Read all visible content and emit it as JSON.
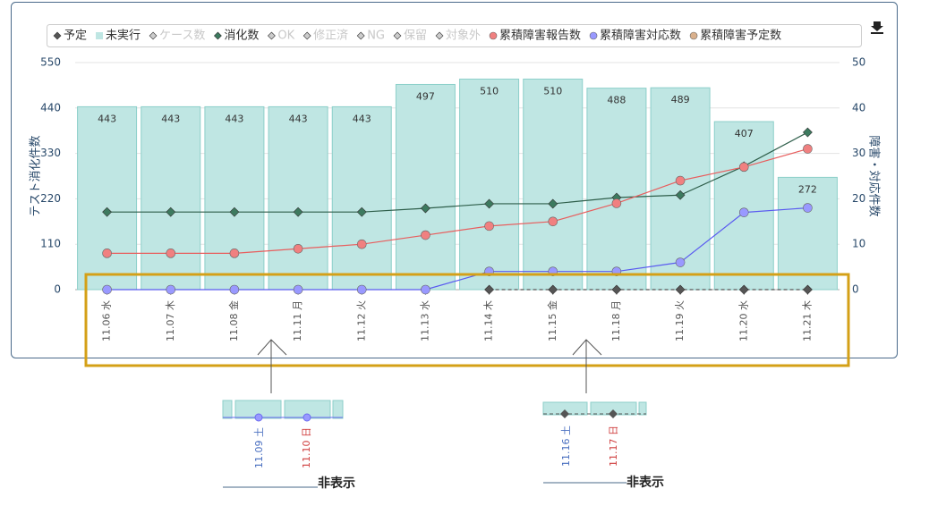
{
  "chart_data": {
    "type": "bar-line",
    "categories": [
      "11.06 水",
      "11.07 木",
      "11.08 金",
      "11.11 月",
      "11.12 火",
      "11.13 水",
      "11.14 木",
      "11.15 金",
      "11.18 月",
      "11.19 火",
      "11.20 水",
      "11.21 木"
    ],
    "ylabel": "テスト消化件数",
    "y2label": "障害・対応件数",
    "ylim": [
      0,
      550
    ],
    "yticks": [
      0,
      110,
      220,
      330,
      440,
      550
    ],
    "y2lim": [
      0,
      50
    ],
    "y2ticks": [
      0,
      10,
      20,
      30,
      40,
      50
    ],
    "series": [
      {
        "name": "予定",
        "color": "#555555",
        "marker": "diamond",
        "kind": "line",
        "dashed": true,
        "axis": "y",
        "values": [
          null,
          null,
          null,
          null,
          null,
          null,
          0,
          0,
          0,
          0,
          0,
          0
        ]
      },
      {
        "name": "未実行",
        "color": "#bfe6e3",
        "marker": "square",
        "kind": "bar",
        "axis": "y",
        "values": [
          443,
          443,
          443,
          443,
          443,
          497,
          510,
          510,
          488,
          489,
          407,
          272
        ]
      },
      {
        "name": "ケース数",
        "color": "#cccccc",
        "marker": "diamond",
        "hidden": true
      },
      {
        "name": "消化数",
        "color": "#3d7a5f",
        "marker": "diamond",
        "kind": "line",
        "axis": "y",
        "values": [
          188,
          188,
          188,
          188,
          188,
          197,
          208,
          208,
          223,
          229,
          299,
          381
        ]
      },
      {
        "name": "OK",
        "color": "#cccccc",
        "marker": "diamond",
        "hidden": true
      },
      {
        "name": "修正済",
        "color": "#cccccc",
        "marker": "diamond",
        "hidden": true
      },
      {
        "name": "NG",
        "color": "#cccccc",
        "marker": "diamond",
        "hidden": true
      },
      {
        "name": "保留",
        "color": "#cccccc",
        "marker": "diamond",
        "hidden": true
      },
      {
        "name": "対象外",
        "color": "#cccccc",
        "marker": "diamond",
        "hidden": true
      },
      {
        "name": "累積障害報告数",
        "color": "#f08080",
        "marker": "circle",
        "kind": "line",
        "axis": "y2",
        "values": [
          8,
          8,
          8,
          9,
          10,
          12,
          14,
          15,
          19,
          24,
          27,
          31
        ]
      },
      {
        "name": "累積障害対応数",
        "color": "#9999ff",
        "marker": "circle",
        "kind": "line",
        "axis": "y2",
        "values": [
          0,
          0,
          0,
          0,
          0,
          0,
          4,
          4,
          4,
          6,
          17,
          18
        ]
      },
      {
        "name": "累積障害予定数",
        "color": "#d9b08c",
        "marker": "circle"
      }
    ]
  },
  "annotations": [
    {
      "dates": [
        {
          "label": "11.09 土",
          "color": "#4a6fc0"
        },
        {
          "label": "11.10 日",
          "color": "#d04040"
        }
      ],
      "note": "非表示"
    },
    {
      "dates": [
        {
          "label": "11.16 土",
          "color": "#4a6fc0"
        },
        {
          "label": "11.17 日",
          "color": "#d04040"
        }
      ],
      "note": "非表示"
    }
  ]
}
